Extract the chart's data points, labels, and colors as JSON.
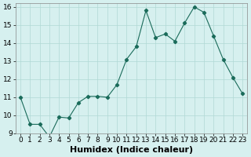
{
  "x": [
    0,
    1,
    2,
    3,
    4,
    5,
    6,
    7,
    8,
    9,
    10,
    11,
    12,
    13,
    14,
    15,
    16,
    17,
    18,
    19,
    20,
    21,
    22,
    23
  ],
  "y": [
    11.0,
    9.5,
    9.5,
    8.8,
    9.9,
    9.85,
    10.7,
    11.05,
    11.05,
    11.0,
    11.7,
    13.1,
    13.8,
    15.8,
    14.3,
    14.5,
    14.1,
    15.1,
    16.0,
    15.7,
    14.4,
    13.1,
    12.1,
    11.2
  ],
  "xlabel": "Humidex (Indice chaleur)",
  "ylim": [
    9,
    16
  ],
  "yticks": [
    9,
    10,
    11,
    12,
    13,
    14,
    15,
    16
  ],
  "xticks": [
    0,
    1,
    2,
    3,
    4,
    5,
    6,
    7,
    8,
    9,
    10,
    11,
    12,
    13,
    14,
    15,
    16,
    17,
    18,
    19,
    20,
    21,
    22,
    23
  ],
  "line_color": "#1a6b5a",
  "marker_color": "#1a6b5a",
  "bg_color": "#d6f0ef",
  "grid_color": "#b0d8d5",
  "xlabel_fontsize": 8,
  "tick_fontsize": 6.5
}
